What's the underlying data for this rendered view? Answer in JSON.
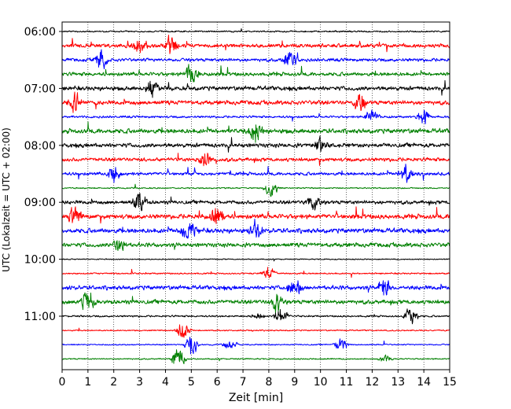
{
  "chart_data": {
    "type": "line",
    "chart_kind": "helicorder",
    "xlabel": "Zeit  [min]",
    "ylabel": "UTC (Lokalzeit = UTC + 02:00)",
    "xlim": [
      0,
      15
    ],
    "x_ticks": [
      "0",
      "1",
      "2",
      "3",
      "4",
      "5",
      "6",
      "7",
      "8",
      "9",
      "10",
      "11",
      "12",
      "13",
      "14",
      "15"
    ],
    "y_tick_labels": [
      "06:00",
      "07:00",
      "08:00",
      "09:00",
      "10:00",
      "11:00"
    ],
    "grid": "vertical dotted lines at each minute",
    "trace_interval_minutes": 15,
    "colors": [
      "#000000",
      "#ff0000",
      "#0000ff",
      "#008000"
    ],
    "traces": [
      {
        "start": "06:00",
        "color": "#000000",
        "activity": 0.15,
        "bursts": []
      },
      {
        "start": "06:15",
        "color": "#ff0000",
        "activity": 0.6,
        "bursts": [
          [
            3.0,
            0.9
          ],
          [
            4.2,
            1.0
          ]
        ]
      },
      {
        "start": "06:30",
        "color": "#0000ff",
        "activity": 0.5,
        "bursts": [
          [
            1.5,
            0.8
          ],
          [
            8.8,
            0.7
          ]
        ]
      },
      {
        "start": "06:45",
        "color": "#008000",
        "activity": 0.6,
        "bursts": [
          [
            5.0,
            1.0
          ]
        ]
      },
      {
        "start": "07:00",
        "color": "#000000",
        "activity": 0.7,
        "bursts": [
          [
            3.5,
            0.8
          ]
        ]
      },
      {
        "start": "07:15",
        "color": "#ff0000",
        "activity": 0.7,
        "bursts": [
          [
            0.5,
            0.9
          ],
          [
            11.5,
            0.8
          ]
        ]
      },
      {
        "start": "07:30",
        "color": "#0000ff",
        "activity": 0.3,
        "bursts": [
          [
            12.0,
            0.8
          ],
          [
            14.0,
            0.7
          ]
        ]
      },
      {
        "start": "07:45",
        "color": "#008000",
        "activity": 0.8,
        "bursts": [
          [
            7.5,
            0.9
          ]
        ]
      },
      {
        "start": "08:00",
        "color": "#000000",
        "activity": 0.7,
        "bursts": [
          [
            10.0,
            0.7
          ]
        ]
      },
      {
        "start": "08:15",
        "color": "#ff0000",
        "activity": 0.6,
        "bursts": [
          [
            5.5,
            0.9
          ]
        ]
      },
      {
        "start": "08:30",
        "color": "#0000ff",
        "activity": 0.5,
        "bursts": [
          [
            2.0,
            0.8
          ],
          [
            13.3,
            0.7
          ]
        ]
      },
      {
        "start": "08:45",
        "color": "#008000",
        "activity": 0.1,
        "bursts": [
          [
            8.1,
            0.8
          ]
        ]
      },
      {
        "start": "09:00",
        "color": "#000000",
        "activity": 0.6,
        "bursts": [
          [
            3.0,
            0.9
          ],
          [
            9.7,
            0.8
          ]
        ]
      },
      {
        "start": "09:15",
        "color": "#ff0000",
        "activity": 0.8,
        "bursts": [
          [
            0.5,
            1.0
          ],
          [
            6.0,
            0.9
          ]
        ]
      },
      {
        "start": "09:30",
        "color": "#0000ff",
        "activity": 0.8,
        "bursts": [
          [
            4.9,
            1.0
          ],
          [
            7.5,
            0.8
          ]
        ]
      },
      {
        "start": "09:45",
        "color": "#008000",
        "activity": 0.7,
        "bursts": [
          [
            2.2,
            0.8
          ]
        ]
      },
      {
        "start": "10:00",
        "color": "#000000",
        "activity": 0.05,
        "bursts": []
      },
      {
        "start": "10:15",
        "color": "#ff0000",
        "activity": 0.15,
        "bursts": [
          [
            8.0,
            0.6
          ]
        ]
      },
      {
        "start": "10:30",
        "color": "#0000ff",
        "activity": 0.7,
        "bursts": [
          [
            9.0,
            0.9
          ],
          [
            12.5,
            0.8
          ]
        ]
      },
      {
        "start": "10:45",
        "color": "#008000",
        "activity": 0.7,
        "bursts": [
          [
            1.0,
            0.9
          ],
          [
            8.3,
            0.8
          ]
        ]
      },
      {
        "start": "11:00",
        "color": "#000000",
        "activity": 0.2,
        "bursts": [
          [
            7.6,
            0.3
          ],
          [
            8.5,
            0.9
          ],
          [
            13.5,
            0.9
          ]
        ]
      },
      {
        "start": "11:15",
        "color": "#ff0000",
        "activity": 0.1,
        "bursts": [
          [
            4.7,
            1.0
          ]
        ]
      },
      {
        "start": "11:30",
        "color": "#0000ff",
        "activity": 0.1,
        "bursts": [
          [
            5.0,
            1.0
          ],
          [
            6.5,
            0.5
          ],
          [
            10.8,
            0.6
          ]
        ]
      },
      {
        "start": "11:45",
        "color": "#008000",
        "activity": 0.1,
        "bursts": [
          [
            4.5,
            1.0
          ],
          [
            12.5,
            0.4
          ]
        ]
      }
    ]
  }
}
